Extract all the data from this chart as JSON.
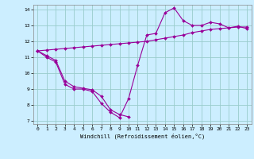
{
  "title": "",
  "xlabel": "Windchill (Refroidissement éolien,°C)",
  "background_color": "#cceeff",
  "grid_color": "#99cccc",
  "line_color": "#990099",
  "xlim": [
    -0.5,
    23.5
  ],
  "ylim": [
    6.8,
    14.3
  ],
  "yticks": [
    7,
    8,
    9,
    10,
    11,
    12,
    13,
    14
  ],
  "xticks": [
    0,
    1,
    2,
    3,
    4,
    5,
    6,
    7,
    8,
    9,
    10,
    11,
    12,
    13,
    14,
    15,
    16,
    17,
    18,
    19,
    20,
    21,
    22,
    23
  ],
  "line2_x": [
    0,
    1,
    2,
    3,
    4,
    5,
    6,
    7,
    8,
    9,
    10,
    11,
    12,
    13,
    14,
    15,
    16,
    17,
    18,
    19,
    20,
    21,
    22,
    23
  ],
  "line2_y": [
    11.4,
    11.0,
    10.7,
    9.3,
    9.0,
    9.0,
    8.85,
    8.1,
    7.55,
    7.2,
    8.4,
    10.5,
    12.4,
    12.5,
    13.8,
    14.1,
    13.3,
    13.0,
    13.0,
    13.2,
    13.1,
    12.85,
    12.95,
    12.8
  ],
  "line1_x": [
    0,
    1,
    2,
    3,
    4,
    5,
    6,
    7,
    8,
    9,
    10
  ],
  "line1_y": [
    11.4,
    11.1,
    10.8,
    9.5,
    9.15,
    9.05,
    8.95,
    8.55,
    7.7,
    7.4,
    7.25
  ],
  "line3_x": [
    0,
    1,
    2,
    3,
    4,
    5,
    6,
    7,
    8,
    9,
    10,
    11,
    12,
    13,
    14,
    15,
    16,
    17,
    18,
    19,
    20,
    21,
    22,
    23
  ],
  "line3_y": [
    11.4,
    11.45,
    11.5,
    11.55,
    11.6,
    11.65,
    11.7,
    11.75,
    11.8,
    11.85,
    11.9,
    11.95,
    12.0,
    12.1,
    12.2,
    12.3,
    12.4,
    12.55,
    12.65,
    12.75,
    12.8,
    12.85,
    12.9,
    12.9
  ]
}
